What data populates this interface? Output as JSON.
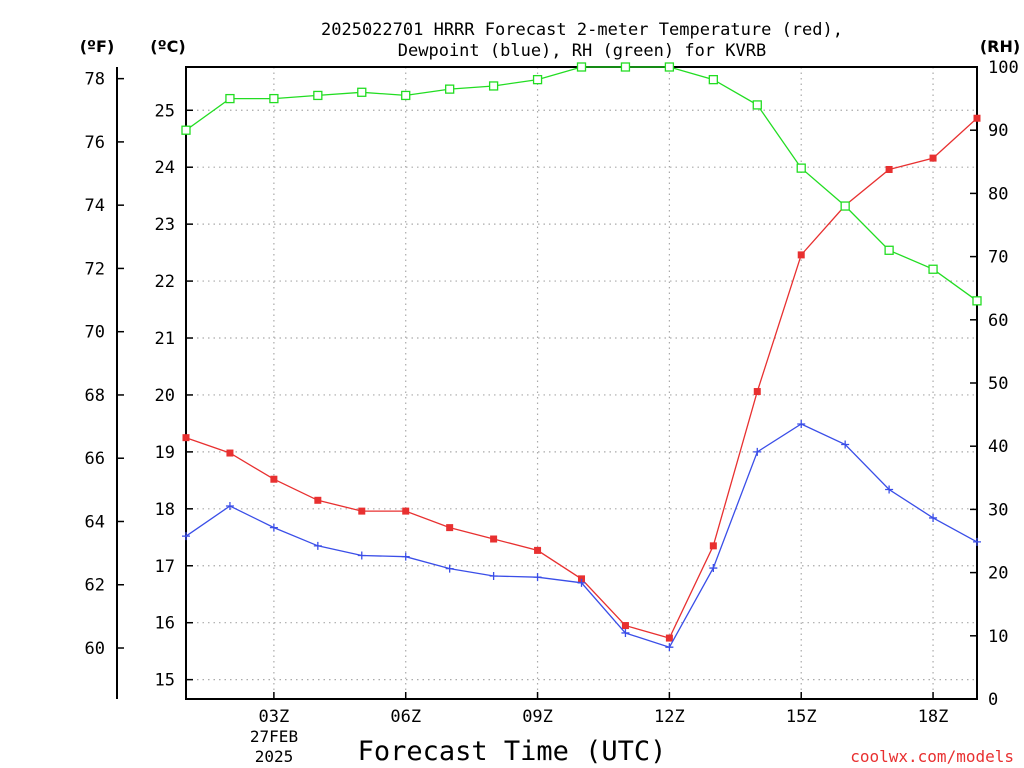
{
  "chart_data": {
    "type": "line",
    "title_line1": "2025022701 HRRR Forecast 2-meter Temperature (red),",
    "title_line2": "Dewpoint (blue), RH (green) for KVRB",
    "xlabel": "Forecast Time (UTC)",
    "date_label": "27FEB",
    "year_label": "2025",
    "credit": "coolwx.com/models",
    "unit_labels": {
      "fahrenheit": "(ºF)",
      "celsius": "(ºC)",
      "rh": "(RH)"
    },
    "x_hours": [
      1,
      2,
      3,
      4,
      5,
      6,
      7,
      8,
      9,
      10,
      11,
      12,
      13,
      14,
      15,
      16,
      17,
      18,
      19
    ],
    "x_range": [
      1,
      19
    ],
    "x_ticks": [
      {
        "hour": 3,
        "label": "03Z"
      },
      {
        "hour": 6,
        "label": "06Z"
      },
      {
        "hour": 9,
        "label": "09Z"
      },
      {
        "hour": 12,
        "label": "12Z"
      },
      {
        "hour": 15,
        "label": "15Z"
      },
      {
        "hour": 18,
        "label": "18Z"
      }
    ],
    "celsius_range": [
      14.66,
      25.76
    ],
    "celsius_ticks": [
      "15",
      "16",
      "17",
      "18",
      "19",
      "20",
      "21",
      "22",
      "23",
      "24",
      "25"
    ],
    "fahrenheit_ticks": [
      "60",
      "62",
      "64",
      "66",
      "68",
      "70",
      "72",
      "74",
      "76",
      "78"
    ],
    "rh_range": [
      0,
      100
    ],
    "rh_ticks": [
      "0",
      "10",
      "20",
      "30",
      "40",
      "50",
      "60",
      "70",
      "80",
      "90",
      "100"
    ],
    "grid": true,
    "series": [
      {
        "name": "Temperature",
        "axis": "celsius",
        "color": "#e83030",
        "marker": "filled-square",
        "values": [
          19.25,
          18.98,
          18.52,
          18.15,
          17.96,
          17.96,
          17.67,
          17.47,
          17.27,
          16.77,
          15.95,
          15.73,
          17.35,
          20.06,
          22.46,
          23.33,
          23.96,
          24.16,
          24.86
        ]
      },
      {
        "name": "Dewpoint",
        "axis": "celsius",
        "color": "#3a4ee8",
        "marker": "plus",
        "values": [
          17.52,
          18.05,
          17.67,
          17.35,
          17.18,
          17.16,
          16.95,
          16.82,
          16.8,
          16.7,
          15.82,
          15.57,
          16.96,
          19.0,
          19.49,
          19.13,
          18.34,
          17.84,
          17.42
        ]
      },
      {
        "name": "RH",
        "axis": "rh",
        "color": "#22dd22",
        "marker": "open-square",
        "values": [
          90,
          95,
          95,
          95.5,
          96,
          95.5,
          96.5,
          97,
          98,
          100,
          100,
          100,
          98,
          94,
          84,
          78,
          71,
          68,
          63
        ]
      }
    ]
  }
}
